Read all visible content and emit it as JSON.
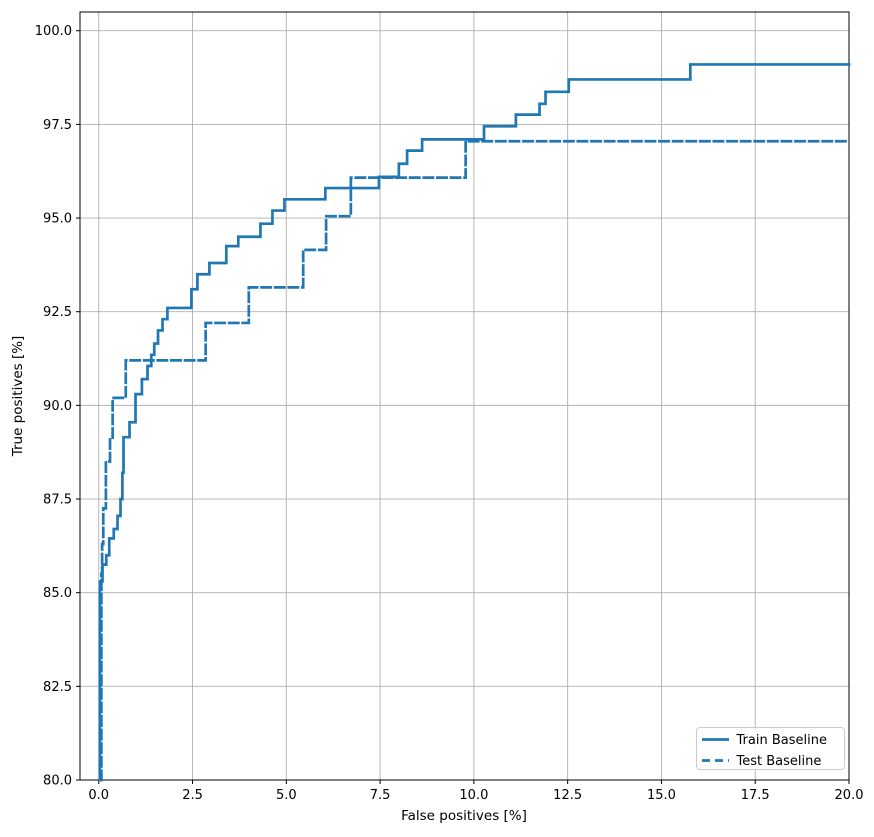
{
  "chart_data": {
    "type": "line",
    "plot_style": "step",
    "title": "",
    "xlabel": "False positives [%]",
    "ylabel": "True positives [%]",
    "xlim": [
      -0.5,
      20.0
    ],
    "ylim": [
      80.0,
      100.5
    ],
    "grid": true,
    "grid_color": "#b0b0b0",
    "spine_color": "#000000",
    "accent_color": "#1f77b4",
    "x_ticks": {
      "values": [
        0,
        2.5,
        5,
        7.5,
        10,
        12.5,
        15,
        17.5,
        20
      ],
      "labels": [
        "0.0",
        "2.5",
        "5.0",
        "7.5",
        "10.0",
        "12.5",
        "15.0",
        "17.5",
        "20.0"
      ]
    },
    "y_ticks": {
      "values": [
        80,
        82.5,
        85,
        87.5,
        90,
        92.5,
        95,
        97.5,
        100
      ],
      "labels": [
        "80.0",
        "82.5",
        "85.0",
        "87.5",
        "90.0",
        "92.5",
        "95.0",
        "97.5",
        "100.0"
      ]
    },
    "legend": {
      "position": "lower right",
      "entries": [
        {
          "label": "Train Baseline",
          "line_style": "solid"
        },
        {
          "label": "Test Baseline",
          "line_style": "dashed"
        }
      ]
    },
    "series": [
      {
        "name": "Train Baseline",
        "line_style": "solid",
        "color": "#1f77b4",
        "start": [
          0.03,
          80.0
        ],
        "end_x": 20.0,
        "steps": [
          [
            0.03,
            85.3
          ],
          [
            0.1,
            85.75
          ],
          [
            0.2,
            86.0
          ],
          [
            0.28,
            86.45
          ],
          [
            0.4,
            86.7
          ],
          [
            0.5,
            87.05
          ],
          [
            0.58,
            87.5
          ],
          [
            0.63,
            88.2
          ],
          [
            0.66,
            89.15
          ],
          [
            0.82,
            89.55
          ],
          [
            0.98,
            90.3
          ],
          [
            1.15,
            90.7
          ],
          [
            1.3,
            91.05
          ],
          [
            1.4,
            91.35
          ],
          [
            1.48,
            91.65
          ],
          [
            1.58,
            92.0
          ],
          [
            1.7,
            92.3
          ],
          [
            1.83,
            92.6
          ],
          [
            2.47,
            93.1
          ],
          [
            2.63,
            93.5
          ],
          [
            2.95,
            93.8
          ],
          [
            3.4,
            94.25
          ],
          [
            3.72,
            94.5
          ],
          [
            4.31,
            94.85
          ],
          [
            4.63,
            95.2
          ],
          [
            4.95,
            95.5
          ],
          [
            6.04,
            95.8
          ],
          [
            7.47,
            96.1
          ],
          [
            8.0,
            96.45
          ],
          [
            8.22,
            96.8
          ],
          [
            8.62,
            97.1
          ],
          [
            10.27,
            97.45
          ],
          [
            11.12,
            97.76
          ],
          [
            11.75,
            98.05
          ],
          [
            11.91,
            98.37
          ],
          [
            12.53,
            98.7
          ],
          [
            15.77,
            99.1
          ]
        ]
      },
      {
        "name": "Test Baseline",
        "line_style": "dashed",
        "color": "#1f77b4",
        "start": [
          0.07,
          80.0
        ],
        "end_x": 20.0,
        "steps": [
          [
            0.07,
            85.5
          ],
          [
            0.09,
            86.3
          ],
          [
            0.12,
            87.25
          ],
          [
            0.19,
            88.5
          ],
          [
            0.3,
            89.1
          ],
          [
            0.37,
            90.2
          ],
          [
            0.72,
            91.2
          ],
          [
            2.85,
            92.2
          ],
          [
            4.0,
            93.15
          ],
          [
            5.45,
            94.15
          ],
          [
            6.06,
            95.05
          ],
          [
            6.72,
            96.08
          ],
          [
            9.78,
            97.05
          ]
        ]
      }
    ]
  }
}
